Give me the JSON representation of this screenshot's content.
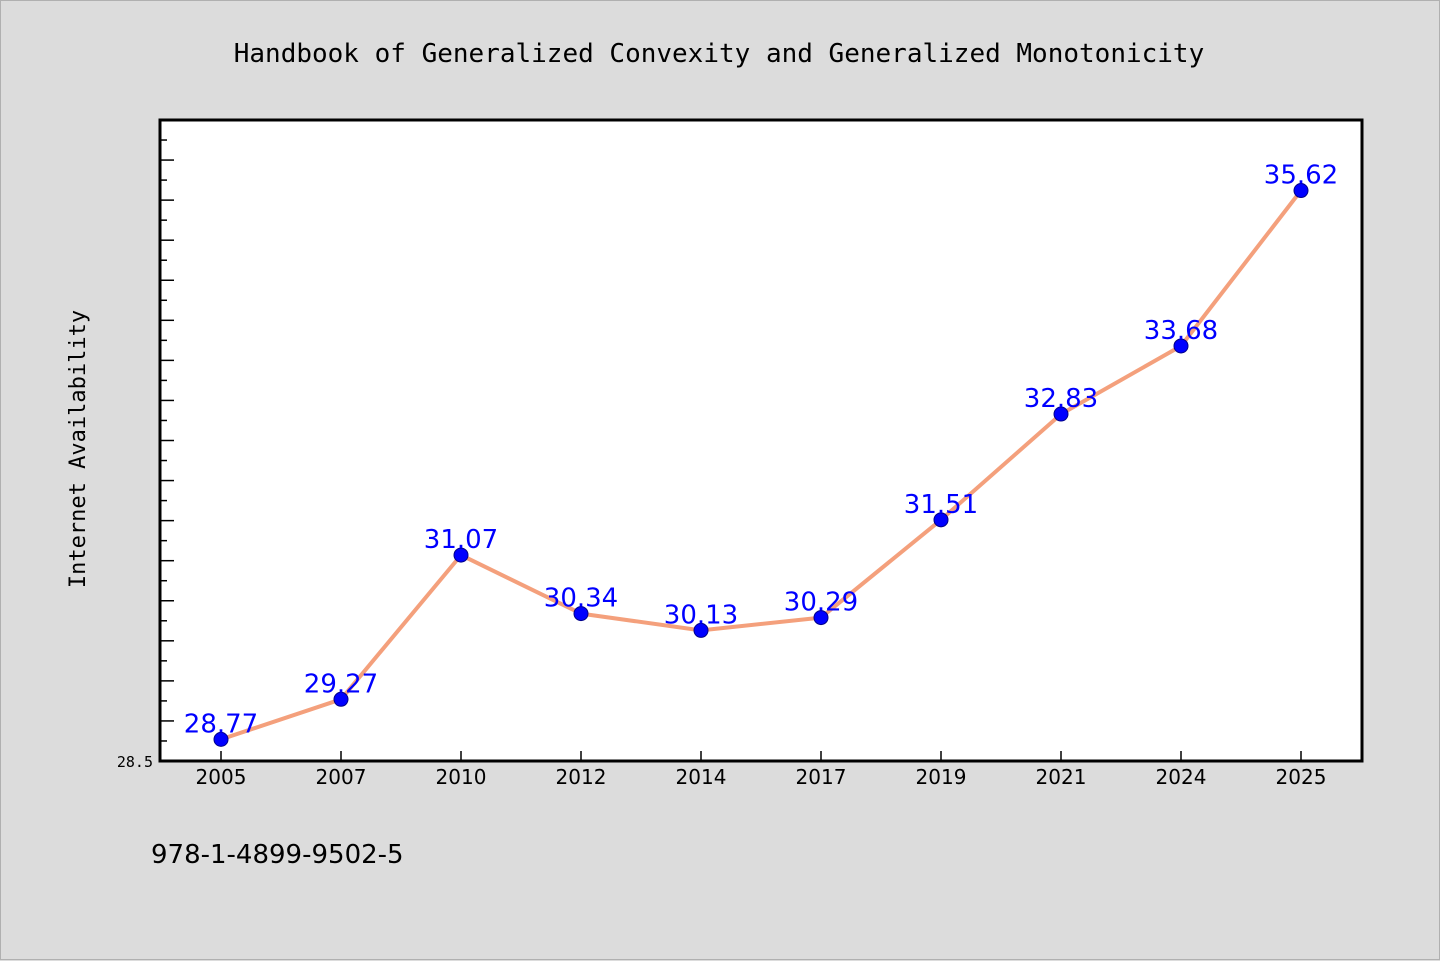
{
  "chart_data": {
    "type": "line",
    "title": "Handbook of Generalized Convexity and Generalized Monotonicity",
    "xlabel": "",
    "ylabel": "Internet Availability",
    "categories": [
      "2005",
      "2007",
      "2010",
      "2012",
      "2014",
      "2017",
      "2019",
      "2021",
      "2024",
      "2025"
    ],
    "series": [
      {
        "values": [
          28.77,
          29.27,
          31.07,
          30.34,
          30.13,
          30.29,
          31.51,
          32.83,
          33.68,
          35.62
        ],
        "data_labels": [
          "28.77",
          "29.27",
          "31.07",
          "30.34",
          "30.13",
          "30.29",
          "31.51",
          "32.83",
          "33.68",
          "35.62"
        ]
      }
    ],
    "ylim": [
      28.5,
      36.5
    ],
    "ytick_label": "28.5",
    "grid": false,
    "legend": "none",
    "line_color": "#f4a07c",
    "marker_color": "#0000ff",
    "label_color": "#0000ff"
  },
  "footer": {
    "isbn": "978-1-4899-9502-5"
  }
}
